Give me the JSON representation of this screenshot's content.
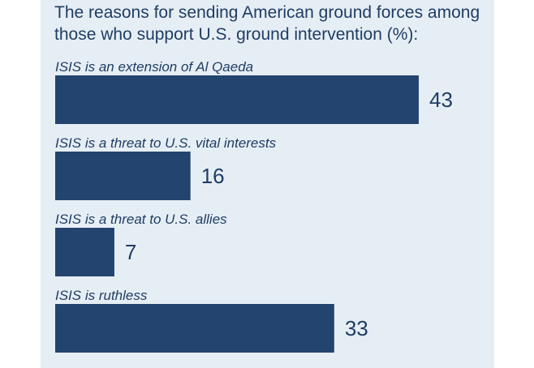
{
  "colors": {
    "bar": "#22446f",
    "text": "#1f3d64",
    "panel": "#e6eef5"
  },
  "chart_data": {
    "type": "bar",
    "orientation": "horizontal",
    "title": "The reasons for sending American ground forces among those who support U.S. ground intervention (%):",
    "categories": [
      "ISIS is an extension of Al Qaeda",
      "ISIS is a threat to U.S. vital interests",
      "ISIS is a threat to U.S. allies",
      "ISIS is ruthless"
    ],
    "values": [
      43,
      16,
      7,
      33
    ],
    "value_labels": [
      "43",
      "16",
      "7",
      "33"
    ],
    "grid": false,
    "legend": "none"
  }
}
